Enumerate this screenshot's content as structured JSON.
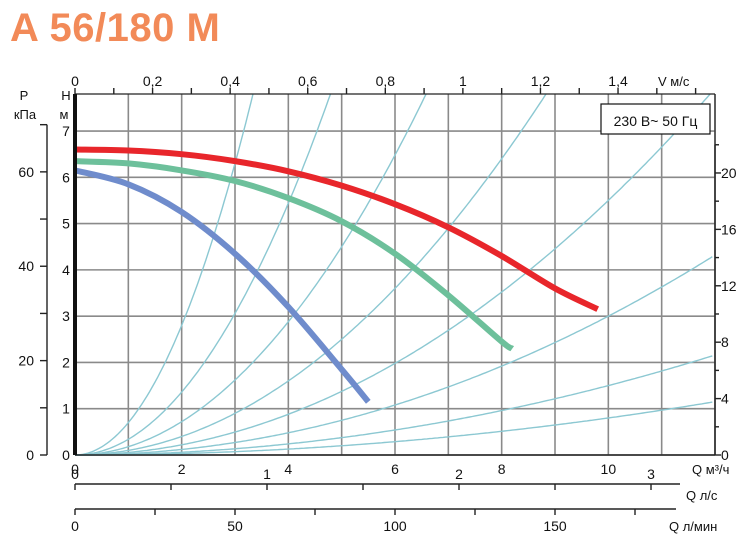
{
  "title": "A 56/180 M",
  "chart_data": {
    "type": "line",
    "title": "A 56/180 M",
    "legend_box": "230 В~ 50 Гц",
    "axes": {
      "q_m3h": {
        "label": "Q м³/ч",
        "range": [
          0,
          12
        ],
        "ticks": [
          0,
          2,
          4,
          6,
          8,
          10
        ],
        "minor_step": 1
      },
      "q_ls": {
        "label": "Q л/с",
        "range": [
          0,
          3.3333
        ],
        "ticks": [
          0,
          1,
          2,
          3
        ],
        "minor_step": 0.5
      },
      "q_lmin": {
        "label": "Q л/мин",
        "range": [
          0,
          200
        ],
        "ticks": [
          0,
          50,
          100,
          150
        ],
        "minor_step": 25
      },
      "h_m": {
        "label_top": "H",
        "label_unit": "м",
        "range": [
          0,
          7.8
        ],
        "ticks": [
          0,
          1,
          2,
          3,
          4,
          5,
          6,
          7
        ]
      },
      "p_kpa": {
        "label_top": "P",
        "label_unit": "кПа",
        "range": [
          0,
          76.5
        ],
        "ticks": [
          0,
          20,
          40,
          60
        ],
        "minor_step": 10
      },
      "v_ms": {
        "label": "V м/с",
        "range": [
          0,
          1.65
        ],
        "ticks": [
          0,
          0.2,
          0.4,
          0.6,
          0.8,
          1,
          1.2,
          1.4
        ],
        "tick_labels": [
          "0",
          "0,2",
          "0,4",
          "0,6",
          "0,8",
          "1",
          "1,2",
          "1,4"
        ]
      },
      "right": {
        "range": [
          0,
          25.6
        ],
        "ticks": [
          0,
          4,
          8,
          12,
          16,
          20
        ]
      }
    },
    "grid": true,
    "series": [
      {
        "color": "#e8262b",
        "x": [
          0,
          1,
          2,
          3,
          4,
          5,
          6,
          7,
          8,
          9,
          9.8
        ],
        "y": [
          6.6,
          6.58,
          6.5,
          6.35,
          6.13,
          5.82,
          5.42,
          4.92,
          4.3,
          3.6,
          3.15
        ]
      },
      {
        "color": "#6dc09b",
        "x": [
          0,
          1,
          2,
          3,
          4,
          5,
          6,
          7,
          8,
          8.2
        ],
        "y": [
          6.35,
          6.3,
          6.15,
          5.92,
          5.55,
          5.05,
          4.35,
          3.45,
          2.45,
          2.3
        ]
      },
      {
        "color": "#6f8ccc",
        "x": [
          0,
          1,
          2,
          3,
          4,
          5,
          5.5
        ],
        "y": [
          6.15,
          5.85,
          5.25,
          4.35,
          3.2,
          1.85,
          1.15
        ]
      }
    ],
    "system_curves": {
      "color": "#8cc8d2",
      "k": [
        0.7,
        0.34,
        0.18,
        0.1,
        0.055,
        0.03,
        0.015,
        0.008
      ]
    }
  }
}
